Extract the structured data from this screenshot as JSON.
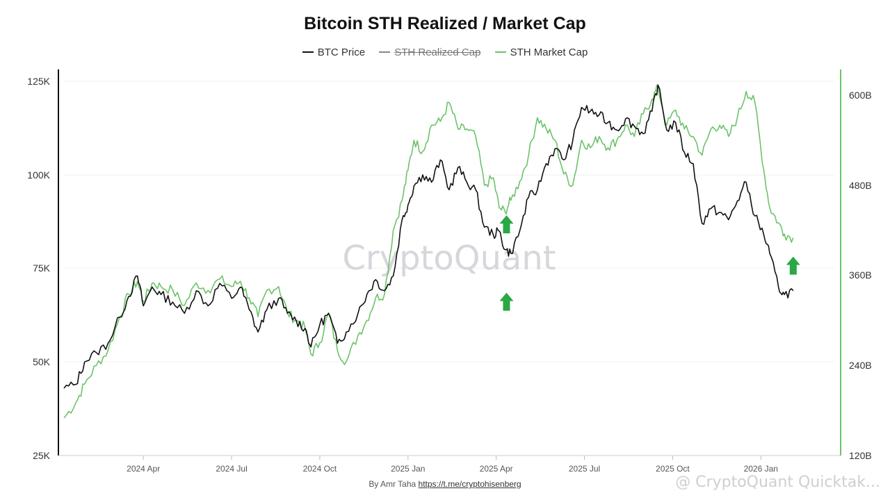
{
  "chart_data": {
    "type": "line",
    "title": "Bitcoin STH Realized / Market Cap",
    "legend": [
      {
        "name": "BTC Price",
        "color": "#111111",
        "enabled": true
      },
      {
        "name": "STH Realized Cap",
        "color": "#888888",
        "enabled": false
      },
      {
        "name": "STH Market Cap",
        "color": "#6cc36a",
        "enabled": true
      }
    ],
    "x_ticks": [
      "2024 Apr",
      "2024 Jul",
      "2024 Oct",
      "2025 Jan",
      "2025 Apr",
      "2025 Jul",
      "2025 Oct",
      "2026 Jan"
    ],
    "x_tick_months": [
      3,
      6,
      9,
      12,
      15,
      18,
      21,
      24
    ],
    "x_range_months": [
      0.3,
      26.5
    ],
    "y_left": {
      "ticks": [
        "25K",
        "50K",
        "75K",
        "100K",
        "125K"
      ],
      "values": [
        25000,
        50000,
        75000,
        100000,
        125000
      ],
      "range": [
        25000,
        128000
      ]
    },
    "y_right": {
      "ticks": [
        "120B",
        "240B",
        "360B",
        "480B",
        "600B"
      ],
      "values": [
        120,
        240,
        360,
        480,
        600
      ],
      "range": [
        120,
        618
      ]
    },
    "series": [
      {
        "name": "BTC Price",
        "axis": "left",
        "points": [
          [
            0.3,
            43000
          ],
          [
            0.7,
            44000
          ],
          [
            1.0,
            50000
          ],
          [
            1.4,
            52500
          ],
          [
            1.8,
            55000
          ],
          [
            2.2,
            62000
          ],
          [
            2.5,
            67500
          ],
          [
            2.8,
            73000
          ],
          [
            3.0,
            65000
          ],
          [
            3.3,
            70000
          ],
          [
            3.6,
            68000
          ],
          [
            4.0,
            66000
          ],
          [
            4.4,
            63000
          ],
          [
            4.8,
            69000
          ],
          [
            5.2,
            65000
          ],
          [
            5.6,
            71000
          ],
          [
            6.0,
            67000
          ],
          [
            6.3,
            70000
          ],
          [
            6.6,
            64000
          ],
          [
            6.9,
            58000
          ],
          [
            7.2,
            64000
          ],
          [
            7.6,
            67000
          ],
          [
            7.9,
            63000
          ],
          [
            8.2,
            61000
          ],
          [
            8.5,
            59000
          ],
          [
            8.7,
            54000
          ],
          [
            9.0,
            60000
          ],
          [
            9.3,
            63000
          ],
          [
            9.6,
            55000
          ],
          [
            9.9,
            58000
          ],
          [
            10.3,
            63000
          ],
          [
            10.6,
            68000
          ],
          [
            10.9,
            72000
          ],
          [
            11.2,
            69000
          ],
          [
            11.5,
            73000
          ],
          [
            11.8,
            88000
          ],
          [
            12.0,
            92000
          ],
          [
            12.2,
            97000
          ],
          [
            12.5,
            100000
          ],
          [
            12.8,
            98000
          ],
          [
            13.1,
            104000
          ],
          [
            13.4,
            96000
          ],
          [
            13.7,
            102000
          ],
          [
            14.0,
            98000
          ],
          [
            14.3,
            96000
          ],
          [
            14.6,
            86000
          ],
          [
            14.9,
            84000
          ],
          [
            15.1,
            85000
          ],
          [
            15.3,
            80000
          ],
          [
            15.5,
            79000
          ],
          [
            15.8,
            85000
          ],
          [
            16.1,
            94000
          ],
          [
            16.4,
            96000
          ],
          [
            16.7,
            103000
          ],
          [
            17.0,
            107000
          ],
          [
            17.3,
            104000
          ],
          [
            17.6,
            109000
          ],
          [
            17.9,
            118000
          ],
          [
            18.2,
            117000
          ],
          [
            18.5,
            116000
          ],
          [
            18.8,
            114000
          ],
          [
            19.1,
            112000
          ],
          [
            19.4,
            115000
          ],
          [
            19.7,
            113000
          ],
          [
            20.0,
            111000
          ],
          [
            20.3,
            117000
          ],
          [
            20.5,
            124000
          ],
          [
            20.8,
            112000
          ],
          [
            21.1,
            114000
          ],
          [
            21.4,
            106000
          ],
          [
            21.7,
            103000
          ],
          [
            22.0,
            87000
          ],
          [
            22.3,
            91000
          ],
          [
            22.6,
            90000
          ],
          [
            22.9,
            88000
          ],
          [
            23.2,
            93000
          ],
          [
            23.5,
            98000
          ],
          [
            23.8,
            89000
          ],
          [
            24.1,
            84000
          ],
          [
            24.3,
            79000
          ],
          [
            24.6,
            70000
          ],
          [
            24.8,
            68000
          ],
          [
            25.1,
            69000
          ]
        ]
      },
      {
        "name": "STH Market Cap",
        "axis": "right",
        "points": [
          [
            0.3,
            170
          ],
          [
            0.7,
            190
          ],
          [
            1.0,
            215
          ],
          [
            1.4,
            240
          ],
          [
            1.8,
            260
          ],
          [
            2.2,
            305
          ],
          [
            2.5,
            335
          ],
          [
            2.8,
            352
          ],
          [
            3.0,
            325
          ],
          [
            3.3,
            350
          ],
          [
            3.6,
            345
          ],
          [
            4.0,
            340
          ],
          [
            4.4,
            320
          ],
          [
            4.8,
            350
          ],
          [
            5.2,
            340
          ],
          [
            5.6,
            355
          ],
          [
            6.0,
            345
          ],
          [
            6.3,
            352
          ],
          [
            6.6,
            330
          ],
          [
            6.9,
            305
          ],
          [
            7.2,
            340
          ],
          [
            7.6,
            345
          ],
          [
            7.9,
            310
          ],
          [
            8.2,
            300
          ],
          [
            8.5,
            290
          ],
          [
            8.7,
            255
          ],
          [
            9.0,
            270
          ],
          [
            9.3,
            310
          ],
          [
            9.6,
            260
          ],
          [
            9.9,
            245
          ],
          [
            10.3,
            280
          ],
          [
            10.6,
            300
          ],
          [
            10.9,
            330
          ],
          [
            11.2,
            335
          ],
          [
            11.5,
            420
          ],
          [
            11.8,
            460
          ],
          [
            12.0,
            500
          ],
          [
            12.2,
            540
          ],
          [
            12.5,
            525
          ],
          [
            12.8,
            560
          ],
          [
            13.1,
            565
          ],
          [
            13.4,
            590
          ],
          [
            13.7,
            555
          ],
          [
            14.0,
            555
          ],
          [
            14.3,
            545
          ],
          [
            14.6,
            480
          ],
          [
            14.9,
            490
          ],
          [
            15.1,
            450
          ],
          [
            15.3,
            445
          ],
          [
            15.5,
            460
          ],
          [
            15.8,
            485
          ],
          [
            16.1,
            520
          ],
          [
            16.4,
            570
          ],
          [
            16.7,
            555
          ],
          [
            17.0,
            540
          ],
          [
            17.3,
            495
          ],
          [
            17.6,
            480
          ],
          [
            17.9,
            540
          ],
          [
            18.2,
            530
          ],
          [
            18.5,
            545
          ],
          [
            18.8,
            530
          ],
          [
            19.1,
            540
          ],
          [
            19.4,
            560
          ],
          [
            19.7,
            545
          ],
          [
            20.0,
            575
          ],
          [
            20.3,
            595
          ],
          [
            20.5,
            610
          ],
          [
            20.8,
            560
          ],
          [
            21.1,
            580
          ],
          [
            21.4,
            555
          ],
          [
            21.7,
            545
          ],
          [
            22.0,
            520
          ],
          [
            22.3,
            555
          ],
          [
            22.6,
            560
          ],
          [
            22.9,
            545
          ],
          [
            23.2,
            570
          ],
          [
            23.5,
            605
          ],
          [
            23.8,
            590
          ],
          [
            24.1,
            500
          ],
          [
            24.3,
            450
          ],
          [
            24.6,
            430
          ],
          [
            24.8,
            415
          ],
          [
            25.1,
            410
          ]
        ]
      }
    ],
    "annotations": [
      {
        "type": "arrow-up",
        "x": 15.35,
        "value": 440,
        "axis": "right",
        "color": "#2aa845"
      },
      {
        "type": "arrow-up",
        "x": 15.35,
        "value": 68500,
        "axis": "left",
        "color": "#2aa845"
      },
      {
        "type": "arrow-up",
        "x": 25.1,
        "value": 385,
        "axis": "right",
        "color": "#2aa845"
      }
    ],
    "watermark": "CryptoQuant",
    "ylabel_left": "",
    "ylabel_right": "",
    "xlabel": ""
  },
  "footer": {
    "credit_prefix": "By Amr Taha ",
    "credit_link": "https://t.me/cryptohisenberg",
    "corner_mark": "@ CryptoQuant Quicktak..."
  }
}
